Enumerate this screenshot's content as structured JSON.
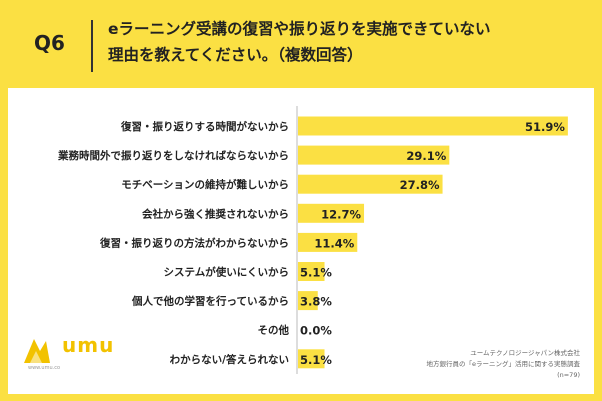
{
  "header": {
    "question_number": "Q6",
    "question_line1": "eラーニング受講の復習や振り返りを実施できていない",
    "question_line2": "理由を教えてください。（複数回答）"
  },
  "logo": {
    "name": "umu",
    "url": "www.umu.co"
  },
  "source": {
    "line1": "ユームテクノロジージャパン株式会社",
    "line2": "地方銀行員の「eラーニング」活用に関する実態調査",
    "line3": "(n=79)"
  },
  "colors": {
    "bar": "#fbe043",
    "background": "#fbe043",
    "panel": "#ffffff",
    "text": "#222222"
  },
  "chart_data": {
    "type": "bar",
    "orientation": "horizontal",
    "categories": [
      "復習・振り返りする時間がないから",
      "業務時間外で振り返りをしなければならないから",
      "モチベーションの維持が難しいから",
      "会社から強く推奨されないから",
      "復習・振り返りの方法がわからないから",
      "システムが使いにくいから",
      "個人で他の学習を行っているから",
      "その他",
      "わからない/答えられない"
    ],
    "values": [
      51.9,
      29.1,
      27.8,
      12.7,
      11.4,
      5.1,
      3.8,
      0.0,
      5.1
    ],
    "value_labels": [
      "51.9%",
      "29.1%",
      "27.8%",
      "12.7%",
      "11.4%",
      "5.1%",
      "3.8%",
      "0.0%",
      "5.1%"
    ],
    "xlim": [
      0,
      55
    ]
  }
}
